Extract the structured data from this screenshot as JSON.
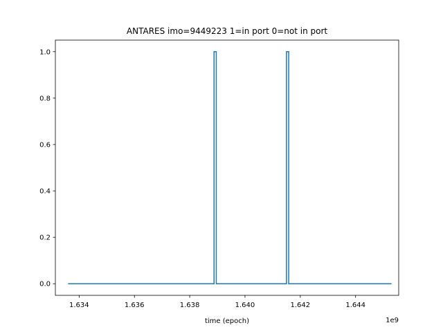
{
  "chart_data": {
    "type": "line",
    "title": "ANTARES imo=9449223 1=in port 0=not in port",
    "xlabel": "time (epoch)",
    "ylabel": "",
    "x_offset_label": "1e9",
    "x_multiplier": 1000000000,
    "xlim": [
      1.63314,
      1.64556
    ],
    "ylim": [
      -0.05,
      1.05
    ],
    "x_ticks": [
      1.634,
      1.636,
      1.638,
      1.64,
      1.642,
      1.644
    ],
    "x_tick_labels": [
      "1.634",
      "1.636",
      "1.638",
      "1.640",
      "1.642",
      "1.644"
    ],
    "y_ticks": [
      0.0,
      0.2,
      0.4,
      0.6,
      0.8,
      1.0
    ],
    "y_tick_labels": [
      "0.0",
      "0.2",
      "0.4",
      "0.6",
      "0.8",
      "1.0"
    ],
    "grid": false,
    "series": [
      {
        "color": "#1f77b4",
        "x": [
          1.6336,
          1.63888,
          1.63888,
          1.63896,
          1.63896,
          1.6415,
          1.6415,
          1.64158,
          1.64158,
          1.6453
        ],
        "y": [
          0,
          0,
          1,
          1,
          0,
          0,
          1,
          1,
          0,
          0
        ]
      }
    ]
  }
}
